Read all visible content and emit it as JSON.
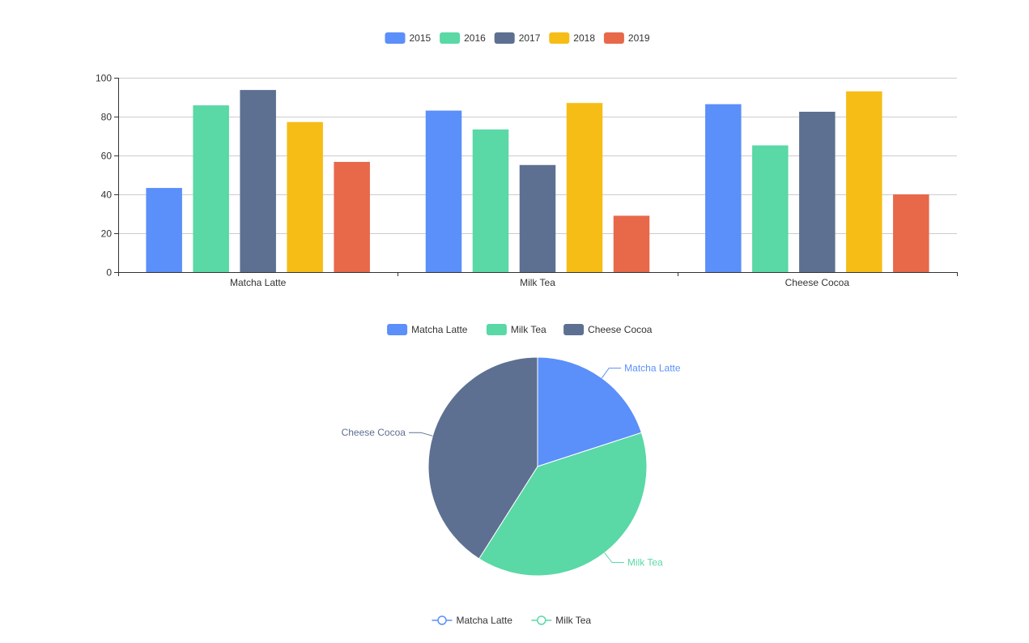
{
  "chart_data": [
    {
      "type": "bar",
      "categories": [
        "Matcha Latte",
        "Milk Tea",
        "Cheese Cocoa"
      ],
      "series": [
        {
          "name": "2015",
          "color": "#5b8ff9",
          "values": [
            43.3,
            83.1,
            86.4
          ]
        },
        {
          "name": "2016",
          "color": "#5ad8a6",
          "values": [
            85.8,
            73.4,
            65.2
          ]
        },
        {
          "name": "2017",
          "color": "#5d7092",
          "values": [
            93.7,
            55.1,
            82.5
          ]
        },
        {
          "name": "2018",
          "color": "#f6bd16",
          "values": [
            77.2,
            87.0,
            93.0
          ]
        },
        {
          "name": "2019",
          "color": "#e8684a",
          "values": [
            56.7,
            29.0,
            40.0
          ]
        }
      ],
      "ylim": [
        0,
        100
      ],
      "yticks": [
        "0",
        "20",
        "40",
        "60",
        "80",
        "100"
      ],
      "grid": true,
      "legend": "top-center"
    },
    {
      "type": "pie",
      "slices": [
        {
          "name": "Matcha Latte",
          "color": "#5b8ff9",
          "value": 20
        },
        {
          "name": "Milk Tea",
          "color": "#5ad8a6",
          "value": 39
        },
        {
          "name": "Cheese Cocoa",
          "color": "#5d7092",
          "value": 41
        }
      ],
      "legend": "top-center",
      "labels": "outside"
    },
    {
      "type": "line",
      "series": [
        {
          "name": "Matcha Latte",
          "color": "#5b8ff9"
        },
        {
          "name": "Milk Tea",
          "color": "#5ad8a6"
        }
      ],
      "legend": "bottom-center"
    }
  ]
}
